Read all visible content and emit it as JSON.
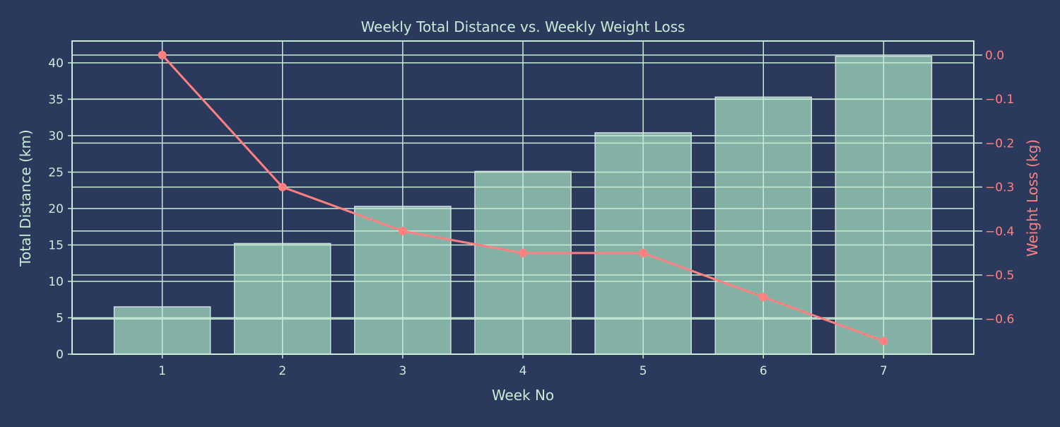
{
  "chart_data": {
    "type": "bar+line",
    "title": "Weekly Total Distance vs. Weekly Weight Loss",
    "xlabel": "Week No",
    "ylabel": "Total Distance (km)",
    "y2label": "Weight Loss (kg)",
    "categories": [
      "1",
      "2",
      "3",
      "4",
      "5",
      "6",
      "7"
    ],
    "x": [
      1,
      2,
      3,
      4,
      5,
      6,
      7
    ],
    "series": [
      {
        "type": "bar",
        "axis": "left",
        "values": [
          6.5,
          15.2,
          20.3,
          25.1,
          30.4,
          35.3,
          40.9
        ]
      },
      {
        "type": "line",
        "axis": "right",
        "values": [
          0.0,
          -0.3,
          -0.4,
          -0.45,
          -0.45,
          -0.55,
          -0.65
        ]
      }
    ],
    "xlim": [
      0.25,
      7.75
    ],
    "ylim": [
      0,
      43
    ],
    "y2lim": [
      -0.68,
      0.032
    ],
    "yticks": [
      0,
      5,
      10,
      15,
      20,
      25,
      30,
      35,
      40
    ],
    "y2ticks": [
      "0.0",
      "−0.1",
      "−0.2",
      "−0.3",
      "−0.4",
      "−0.5",
      "−0.6"
    ],
    "y2tick_values": [
      0,
      -0.1,
      -0.2,
      -0.3,
      -0.4,
      -0.5,
      -0.6
    ],
    "grid": true,
    "colors": {
      "background": "#2b3a5c",
      "bar": "#84b1a6",
      "bar_edge": "#d3dbe0",
      "grid": "#c8ecd6",
      "line": "#ff8080",
      "text": "#c8ecd6",
      "right_axis_text": "#ff8080"
    }
  }
}
